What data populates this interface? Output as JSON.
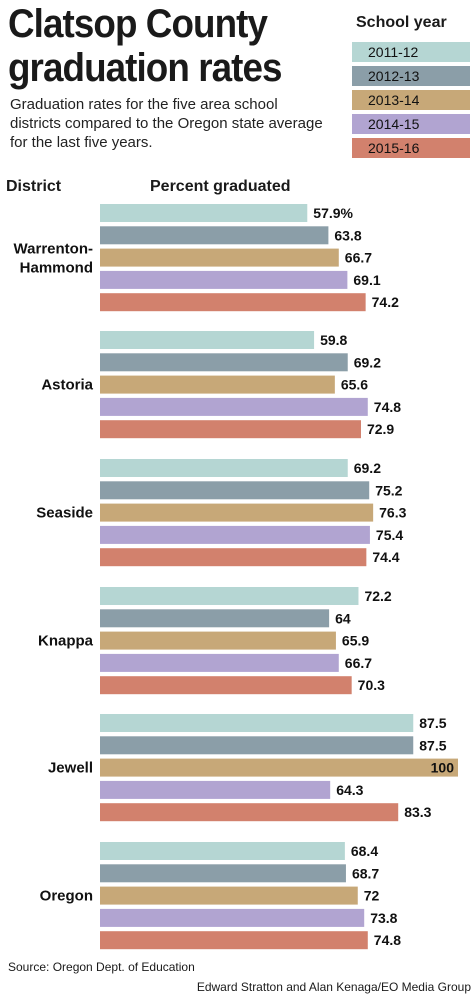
{
  "title": "Clatsop County graduation rates",
  "subtitle": "Graduation rates for the five area school districts compared to the Oregon state average for the last five years.",
  "legend": {
    "title": "School year",
    "items": [
      {
        "label": "2011-12",
        "color": "#b5d6d3"
      },
      {
        "label": "2012-13",
        "color": "#8b9ea8"
      },
      {
        "label": "2013-14",
        "color": "#c7a878"
      },
      {
        "label": "2014-15",
        "color": "#b1a4d1"
      },
      {
        "label": "2015-16",
        "color": "#d2816d"
      }
    ]
  },
  "columns": {
    "district": "District",
    "percent": "Percent graduated"
  },
  "chart_data": {
    "type": "bar",
    "orientation": "horizontal",
    "categories": [
      "Warrenton-Hammond",
      "Astoria",
      "Seaside",
      "Knappa",
      "Jewell",
      "Oregon"
    ],
    "series": [
      {
        "name": "2011-12",
        "values": [
          57.9,
          59.8,
          69.2,
          72.2,
          87.5,
          68.4
        ],
        "labels": [
          "57.9%",
          "59.8",
          "69.2",
          "72.2",
          "87.5",
          "68.4"
        ]
      },
      {
        "name": "2012-13",
        "values": [
          63.8,
          69.2,
          75.2,
          64,
          87.5,
          68.7
        ],
        "labels": [
          "63.8",
          "69.2",
          "75.2",
          "64",
          "87.5",
          "68.7"
        ]
      },
      {
        "name": "2013-14",
        "values": [
          66.7,
          65.6,
          76.3,
          65.9,
          100,
          72
        ],
        "labels": [
          "66.7",
          "65.6",
          "76.3",
          "65.9",
          "100",
          "72"
        ]
      },
      {
        "name": "2014-15",
        "values": [
          69.1,
          74.8,
          75.4,
          66.7,
          64.3,
          73.8
        ],
        "labels": [
          "69.1",
          "74.8",
          "75.4",
          "66.7",
          "64.3",
          "73.8"
        ]
      },
      {
        "name": "2015-16",
        "values": [
          74.2,
          72.9,
          74.4,
          70.3,
          83.3,
          74.8
        ],
        "labels": [
          "74.2",
          "72.9",
          "74.4",
          "70.3",
          "83.3",
          "74.8"
        ]
      }
    ],
    "xlim": [
      0,
      100
    ],
    "grid": false,
    "legend_position": "top-right"
  },
  "source": "Source: Oregon Dept. of Education",
  "credit": "Edward Stratton and Alan Kenaga/EO Media Group"
}
